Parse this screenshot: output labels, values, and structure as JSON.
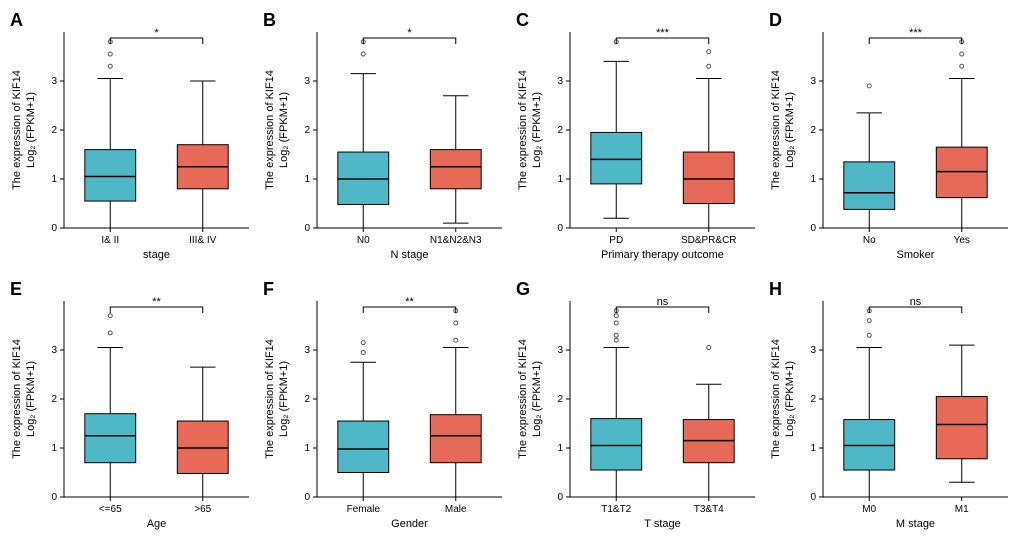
{
  "global": {
    "ylabel": "The expression of KIF14\nLog₂ (FPKM+1)",
    "ylim": [
      0,
      4
    ],
    "yticks": [
      0,
      1,
      2,
      3
    ],
    "colors": {
      "left": "#4fb8c7",
      "right": "#e66a57"
    },
    "box_stroke": "#000000",
    "bg": "#ffffff",
    "outlier_color": "#808080",
    "label_fontsize": 11,
    "tick_fontsize": 10,
    "letter_fontsize": 18
  },
  "panels": [
    {
      "letter": "A",
      "xlabel": "stage",
      "sig": "*",
      "groups": [
        {
          "name": "I& II",
          "color": "left",
          "q1": 0.55,
          "median": 1.05,
          "q3": 1.6,
          "lw": 0.0,
          "uw": 3.05,
          "outliers": [
            3.3,
            3.55,
            3.8
          ]
        },
        {
          "name": "III& IV",
          "color": "right",
          "q1": 0.8,
          "median": 1.25,
          "q3": 1.7,
          "lw": 0.0,
          "uw": 3.0,
          "outliers": []
        }
      ]
    },
    {
      "letter": "B",
      "xlabel": "N stage",
      "sig": "*",
      "groups": [
        {
          "name": "N0",
          "color": "left",
          "q1": 0.48,
          "median": 1.0,
          "q3": 1.55,
          "lw": 0.0,
          "uw": 3.15,
          "outliers": [
            3.55,
            3.8
          ]
        },
        {
          "name": "N1&N2&N3",
          "color": "right",
          "q1": 0.8,
          "median": 1.25,
          "q3": 1.6,
          "lw": 0.1,
          "uw": 2.7,
          "outliers": []
        }
      ]
    },
    {
      "letter": "C",
      "xlabel": "Primary therapy outcome",
      "sig": "***",
      "groups": [
        {
          "name": "PD",
          "color": "left",
          "q1": 0.9,
          "median": 1.4,
          "q3": 1.95,
          "lw": 0.2,
          "uw": 3.4,
          "outliers": [
            3.8
          ]
        },
        {
          "name": "SD&PR&CR",
          "color": "right",
          "q1": 0.5,
          "median": 1.0,
          "q3": 1.55,
          "lw": 0.0,
          "uw": 3.05,
          "outliers": [
            3.3,
            3.6
          ]
        }
      ]
    },
    {
      "letter": "D",
      "xlabel": "Smoker",
      "sig": "***",
      "groups": [
        {
          "name": "No",
          "color": "left",
          "q1": 0.38,
          "median": 0.72,
          "q3": 1.35,
          "lw": 0.0,
          "uw": 2.35,
          "outliers": [
            2.9
          ]
        },
        {
          "name": "Yes",
          "color": "right",
          "q1": 0.62,
          "median": 1.15,
          "q3": 1.65,
          "lw": 0.0,
          "uw": 3.05,
          "outliers": [
            3.3,
            3.55,
            3.8
          ]
        }
      ]
    },
    {
      "letter": "E",
      "xlabel": "Age",
      "sig": "**",
      "groups": [
        {
          "name": "<=65",
          "color": "left",
          "q1": 0.7,
          "median": 1.25,
          "q3": 1.7,
          "lw": 0.0,
          "uw": 3.05,
          "outliers": [
            3.35,
            3.7
          ]
        },
        {
          "name": ">65",
          "color": "right",
          "q1": 0.48,
          "median": 1.0,
          "q3": 1.55,
          "lw": 0.0,
          "uw": 2.65,
          "outliers": []
        }
      ]
    },
    {
      "letter": "F",
      "xlabel": "Gender",
      "sig": "**",
      "groups": [
        {
          "name": "Female",
          "color": "left",
          "q1": 0.5,
          "median": 0.98,
          "q3": 1.55,
          "lw": 0.0,
          "uw": 2.75,
          "outliers": [
            2.95,
            3.15
          ]
        },
        {
          "name": "Male",
          "color": "right",
          "q1": 0.7,
          "median": 1.25,
          "q3": 1.68,
          "lw": 0.0,
          "uw": 3.05,
          "outliers": [
            3.2,
            3.55,
            3.8
          ]
        }
      ]
    },
    {
      "letter": "G",
      "xlabel": "T stage",
      "sig": "ns",
      "groups": [
        {
          "name": "T1&T2",
          "color": "left",
          "q1": 0.55,
          "median": 1.05,
          "q3": 1.6,
          "lw": 0.0,
          "uw": 3.05,
          "outliers": [
            3.2,
            3.3,
            3.55,
            3.7,
            3.8
          ]
        },
        {
          "name": "T3&T4",
          "color": "right",
          "q1": 0.7,
          "median": 1.15,
          "q3": 1.58,
          "lw": 0.0,
          "uw": 2.3,
          "outliers": [
            3.05
          ]
        }
      ]
    },
    {
      "letter": "H",
      "xlabel": "M stage",
      "sig": "ns",
      "groups": [
        {
          "name": "M0",
          "color": "left",
          "q1": 0.55,
          "median": 1.05,
          "q3": 1.58,
          "lw": 0.0,
          "uw": 3.05,
          "outliers": [
            3.3,
            3.6,
            3.8
          ]
        },
        {
          "name": "M1",
          "color": "right",
          "q1": 0.78,
          "median": 1.48,
          "q3": 2.05,
          "lw": 0.3,
          "uw": 3.1,
          "outliers": []
        }
      ]
    }
  ]
}
